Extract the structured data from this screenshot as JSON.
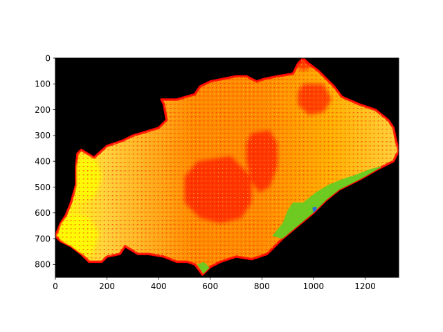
{
  "chart_data": {
    "type": "heatmap",
    "title": "",
    "xlabel": "",
    "ylabel": "",
    "xlim": [
      0,
      1330
    ],
    "ylim": [
      0,
      850
    ],
    "y_inverted": true,
    "x_ticks": [
      "0",
      "200",
      "400",
      "600",
      "800",
      "1000",
      "1200"
    ],
    "x_tick_values": [
      0,
      200,
      400,
      600,
      800,
      1000,
      1200
    ],
    "y_ticks": [
      "0",
      "100",
      "200",
      "300",
      "400",
      "500",
      "600",
      "700",
      "800"
    ],
    "y_tick_values": [
      0,
      100,
      200,
      300,
      400,
      500,
      600,
      700,
      800
    ],
    "grid": false,
    "legend": "none",
    "colors": {
      "background": "#000000",
      "low": "#ff0000",
      "mid_low": "#ff8c00",
      "mid": "#ffb000",
      "mid_high": "#ffd23c",
      "high": "#ffff00",
      "green": "#66cc22",
      "blue": "#2a6fd6"
    },
    "region_outline": [
      [
        0,
        690
      ],
      [
        20,
        640
      ],
      [
        40,
        610
      ],
      [
        60,
        560
      ],
      [
        80,
        490
      ],
      [
        80,
        420
      ],
      [
        85,
        370
      ],
      [
        100,
        355
      ],
      [
        150,
        385
      ],
      [
        200,
        340
      ],
      [
        260,
        320
      ],
      [
        300,
        300
      ],
      [
        400,
        270
      ],
      [
        430,
        240
      ],
      [
        420,
        180
      ],
      [
        410,
        160
      ],
      [
        470,
        160
      ],
      [
        540,
        140
      ],
      [
        560,
        110
      ],
      [
        600,
        90
      ],
      [
        650,
        80
      ],
      [
        700,
        70
      ],
      [
        740,
        70
      ],
      [
        780,
        90
      ],
      [
        810,
        80
      ],
      [
        860,
        70
      ],
      [
        920,
        60
      ],
      [
        940,
        20
      ],
      [
        960,
        0
      ],
      [
        980,
        20
      ],
      [
        1020,
        50
      ],
      [
        1060,
        90
      ],
      [
        1080,
        110
      ],
      [
        1110,
        150
      ],
      [
        1180,
        180
      ],
      [
        1240,
        200
      ],
      [
        1290,
        240
      ],
      [
        1310,
        270
      ],
      [
        1320,
        320
      ],
      [
        1330,
        360
      ],
      [
        1310,
        400
      ],
      [
        1250,
        430
      ],
      [
        1180,
        470
      ],
      [
        1100,
        510
      ],
      [
        1050,
        550
      ],
      [
        1000,
        600
      ],
      [
        940,
        650
      ],
      [
        880,
        700
      ],
      [
        820,
        760
      ],
      [
        760,
        780
      ],
      [
        700,
        770
      ],
      [
        640,
        790
      ],
      [
        600,
        810
      ],
      [
        570,
        840
      ],
      [
        540,
        800
      ],
      [
        510,
        790
      ],
      [
        470,
        790
      ],
      [
        420,
        770
      ],
      [
        360,
        760
      ],
      [
        320,
        760
      ],
      [
        270,
        730
      ],
      [
        250,
        760
      ],
      [
        200,
        770
      ],
      [
        180,
        790
      ],
      [
        130,
        790
      ],
      [
        100,
        760
      ],
      [
        60,
        730
      ],
      [
        20,
        710
      ]
    ],
    "red_zones": [
      [
        [
          760,
          290
        ],
        [
          830,
          280
        ],
        [
          860,
          330
        ],
        [
          860,
          420
        ],
        [
          830,
          500
        ],
        [
          790,
          520
        ],
        [
          760,
          480
        ],
        [
          740,
          400
        ],
        [
          740,
          330
        ]
      ],
      [
        [
          550,
          400
        ],
        [
          680,
          380
        ],
        [
          760,
          460
        ],
        [
          760,
          560
        ],
        [
          720,
          620
        ],
        [
          640,
          640
        ],
        [
          560,
          620
        ],
        [
          500,
          560
        ],
        [
          500,
          460
        ]
      ],
      [
        [
          960,
          100
        ],
        [
          1040,
          100
        ],
        [
          1070,
          160
        ],
        [
          1040,
          210
        ],
        [
          980,
          220
        ],
        [
          940,
          180
        ],
        [
          940,
          130
        ]
      ],
      [
        [
          930,
          0
        ],
        [
          990,
          0
        ],
        [
          1000,
          30
        ],
        [
          960,
          50
        ],
        [
          930,
          30
        ]
      ]
    ],
    "yellow_zones": [
      [
        [
          80,
          420
        ],
        [
          110,
          380
        ],
        [
          160,
          400
        ],
        [
          180,
          460
        ],
        [
          150,
          540
        ],
        [
          100,
          560
        ],
        [
          80,
          520
        ]
      ],
      [
        [
          20,
          640
        ],
        [
          80,
          610
        ],
        [
          130,
          620
        ],
        [
          170,
          680
        ],
        [
          140,
          760
        ],
        [
          80,
          760
        ],
        [
          20,
          710
        ]
      ]
    ],
    "green_zones": [
      [
        [
          840,
          690
        ],
        [
          880,
          640
        ],
        [
          900,
          590
        ],
        [
          920,
          560
        ],
        [
          960,
          560
        ],
        [
          1010,
          520
        ],
        [
          1060,
          490
        ],
        [
          1110,
          470
        ],
        [
          1170,
          450
        ],
        [
          1220,
          430
        ],
        [
          1260,
          420
        ],
        [
          1280,
          440
        ],
        [
          1250,
          460
        ],
        [
          1180,
          490
        ],
        [
          1120,
          510
        ],
        [
          1060,
          550
        ],
        [
          1000,
          600
        ],
        [
          940,
          650
        ],
        [
          880,
          700
        ]
      ],
      [
        [
          550,
          800
        ],
        [
          575,
          790
        ],
        [
          600,
          815
        ],
        [
          575,
          840
        ]
      ]
    ],
    "blue_zones": [
      [
        [
          995,
          580
        ],
        [
          1010,
          575
        ],
        [
          1015,
          595
        ],
        [
          1000,
          600
        ]
      ]
    ]
  }
}
